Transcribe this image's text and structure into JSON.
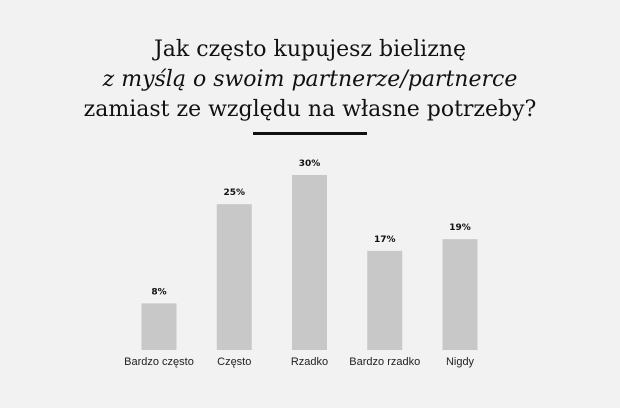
{
  "chart_data": {
    "type": "bar",
    "title": [
      "Jak często kupujesz bieliznę",
      "z myślą o swoim partnerze/partnerce",
      "zamiast ze względu na własne potrzeby?"
    ],
    "categories": [
      "Bardzo często",
      "Często",
      "Rzadko",
      "Bardzo rzadko",
      "Nigdy"
    ],
    "values": [
      8,
      25,
      30,
      17,
      19
    ],
    "value_labels": [
      "8%",
      "25%",
      "30%",
      "17%",
      "19%"
    ],
    "color": "#c8c8c8"
  }
}
